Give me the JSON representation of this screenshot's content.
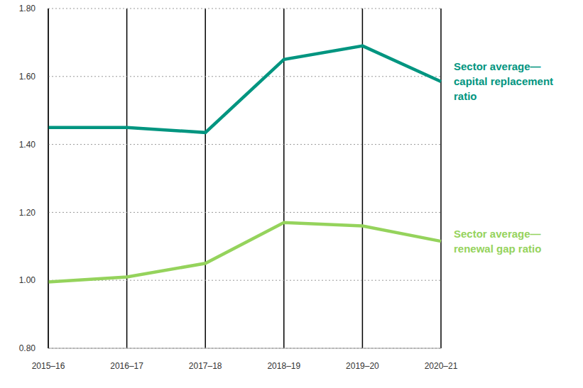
{
  "chart_data": {
    "type": "line",
    "categories": [
      "2015–16",
      "2016–17",
      "2017–18",
      "2018–19",
      "2019–20",
      "2020–21"
    ],
    "series": [
      {
        "name": "Sector average—capital replacement ratio",
        "color": "#009580",
        "values": [
          1.45,
          1.45,
          1.435,
          1.65,
          1.69,
          1.585
        ]
      },
      {
        "name": "Sector average—renewal gap ratio",
        "color": "#95d35c",
        "values": [
          0.995,
          1.01,
          1.05,
          1.17,
          1.16,
          1.115
        ]
      }
    ],
    "ylim": [
      0.8,
      1.8
    ],
    "yticks": [
      {
        "value": 0.8,
        "label": "0.80"
      },
      {
        "value": 1.0,
        "label": "1.00"
      },
      {
        "value": 1.2,
        "label": "1.20"
      },
      {
        "value": 1.4,
        "label": "1.40"
      },
      {
        "value": 1.6,
        "label": "1.60"
      },
      {
        "value": 1.8,
        "label": "1.80"
      }
    ],
    "grid": true
  }
}
